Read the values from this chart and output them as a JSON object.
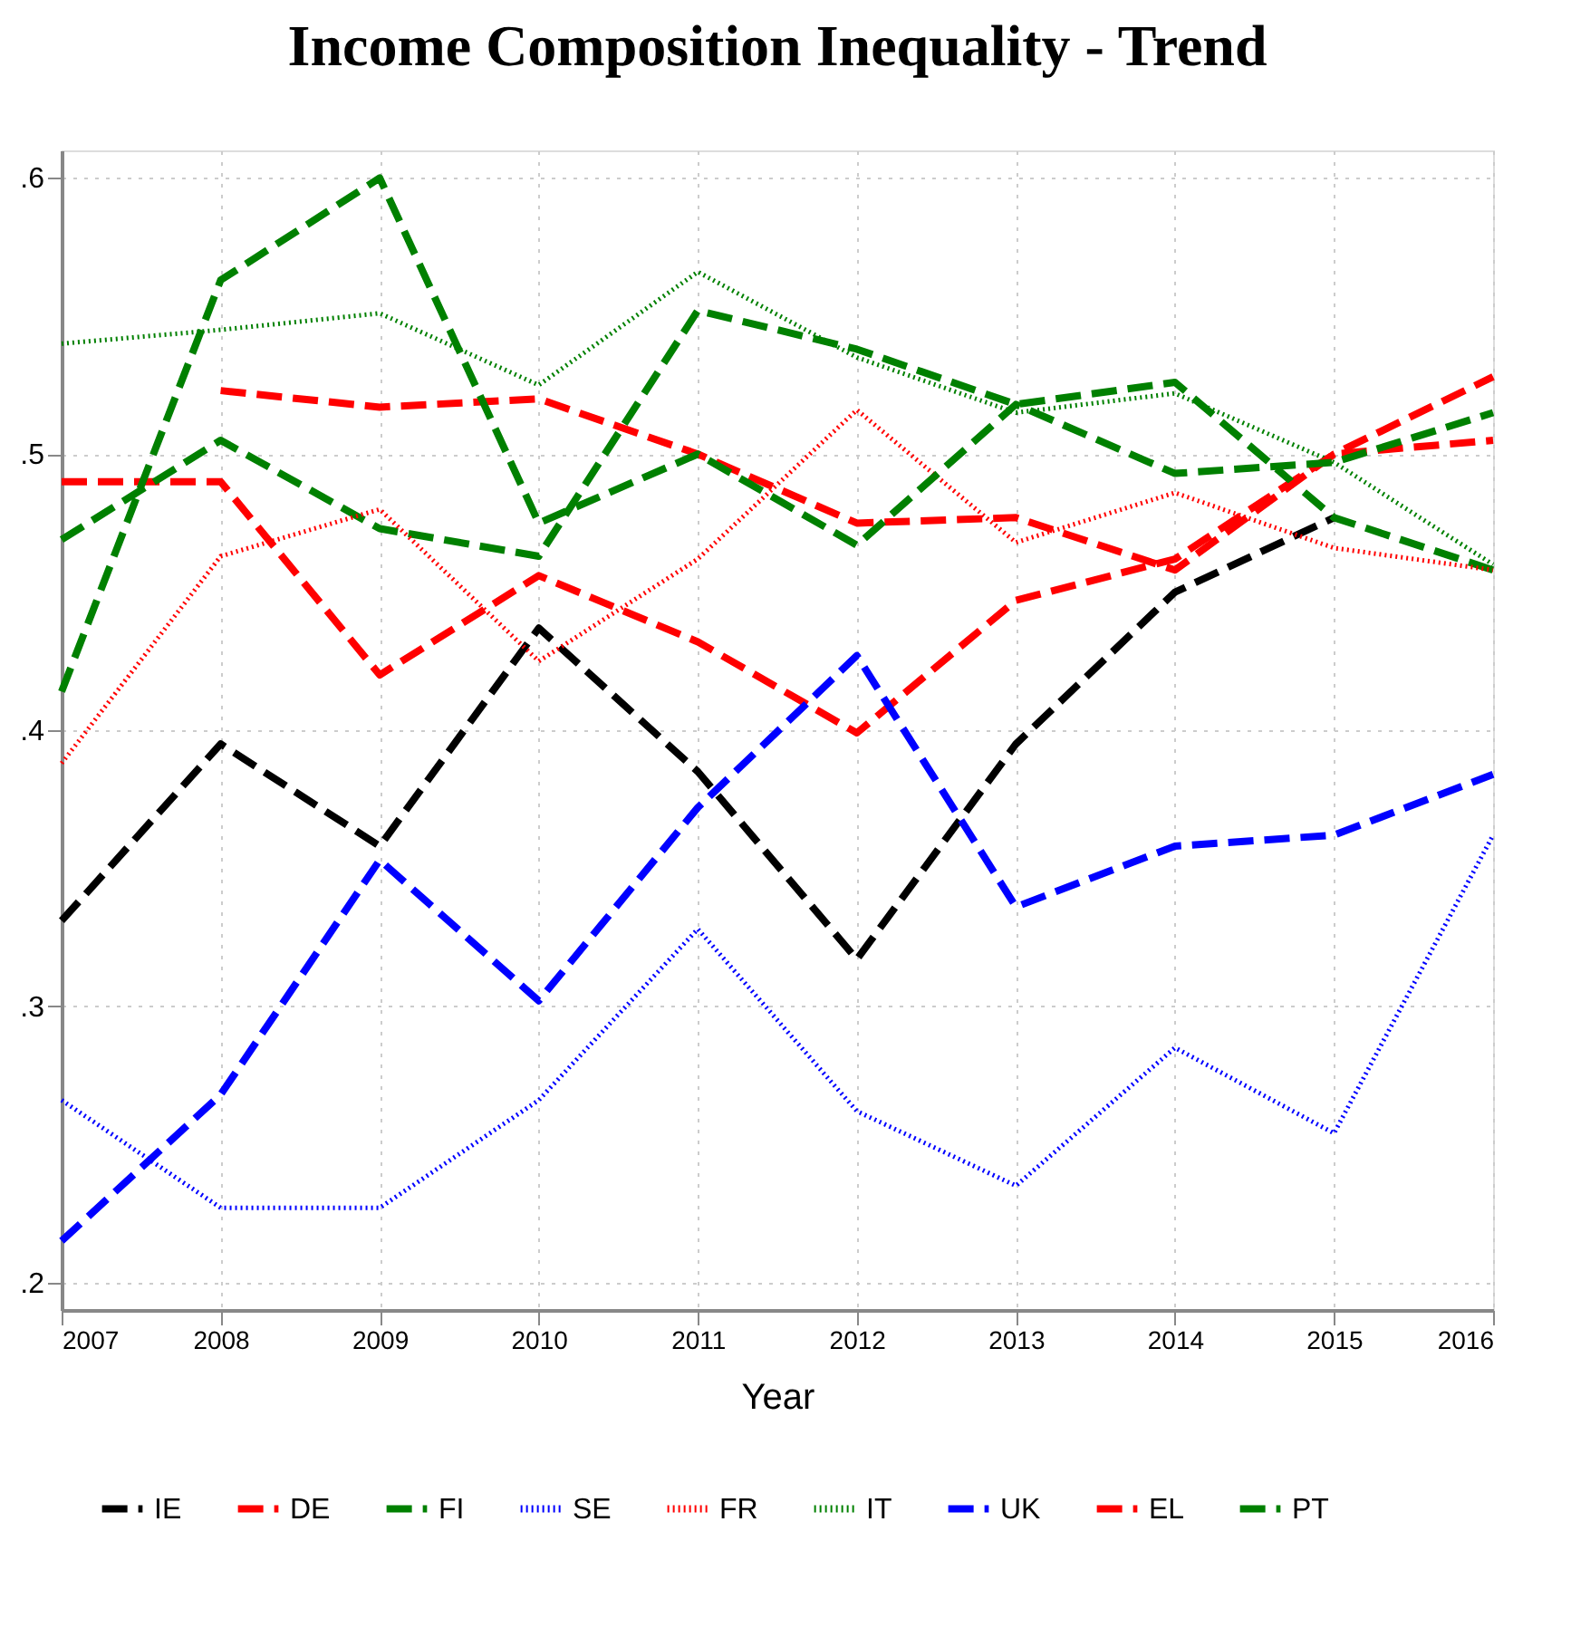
{
  "chart_data": {
    "type": "line",
    "title": "Income Composition Inequality - Trend",
    "xlabel": "Year",
    "x": [
      2007,
      2008,
      2009,
      2010,
      2011,
      2012,
      2013,
      2014,
      2015,
      2016
    ],
    "xlim": [
      2007,
      2016
    ],
    "xticks": [
      2007,
      2008,
      2009,
      2010,
      2011,
      2012,
      2013,
      2014,
      2015,
      2016
    ],
    "ylim": [
      0.19,
      0.61
    ],
    "yticks": [
      {
        "value": 0.2,
        "label": ".2"
      },
      {
        "value": 0.3,
        "label": ".3"
      },
      {
        "value": 0.4,
        "label": ".4"
      },
      {
        "value": 0.5,
        "label": ".5"
      },
      {
        "value": 0.6,
        "label": ".6"
      }
    ],
    "grid": true,
    "legend": "bottom",
    "marker": "none",
    "series": [
      {
        "name": "IE",
        "color": "#000000",
        "line_style": "dashed",
        "values": [
          0.331,
          0.395,
          0.358,
          0.437,
          0.385,
          0.317,
          0.395,
          0.45,
          0.477,
          null
        ]
      },
      {
        "name": "DE",
        "color": "#ff0000",
        "line_style": "dashed",
        "values": [
          0.49,
          0.49,
          0.42,
          0.456,
          0.432,
          0.399,
          0.447,
          0.462,
          0.5,
          0.505
        ]
      },
      {
        "name": "FI",
        "color": "#008000",
        "line_style": "dashed",
        "values": [
          0.469,
          0.505,
          0.473,
          0.463,
          0.552,
          0.538,
          0.518,
          0.526,
          0.477,
          0.458
        ]
      },
      {
        "name": "SE",
        "color": "#0000ff",
        "line_style": "dotted",
        "values": [
          0.266,
          0.227,
          0.227,
          0.266,
          0.328,
          0.262,
          0.235,
          0.285,
          0.254,
          0.362
        ]
      },
      {
        "name": "FR",
        "color": "#ff0000",
        "line_style": "dotted",
        "values": [
          0.388,
          0.463,
          0.48,
          0.425,
          0.462,
          0.516,
          0.468,
          0.486,
          0.466,
          0.458
        ]
      },
      {
        "name": "IT",
        "color": "#008000",
        "line_style": "dotted",
        "values": [
          0.54,
          0.545,
          0.551,
          0.525,
          0.566,
          0.535,
          0.515,
          0.522,
          0.497,
          0.46
        ]
      },
      {
        "name": "UK",
        "color": "#0000ff",
        "line_style": "dashed",
        "values": [
          0.215,
          0.268,
          0.353,
          0.302,
          0.372,
          0.427,
          0.336,
          0.358,
          0.362,
          0.384
        ]
      },
      {
        "name": "EL",
        "color": "#ff0000",
        "line_style": "dashed",
        "values": [
          null,
          0.523,
          0.517,
          0.52,
          0.5,
          0.475,
          0.477,
          0.458,
          0.5,
          0.528
        ]
      },
      {
        "name": "PT",
        "color": "#008000",
        "line_style": "dashed",
        "values": [
          0.414,
          0.563,
          0.6,
          0.475,
          0.5,
          0.467,
          0.518,
          0.493,
          0.497,
          0.515
        ]
      }
    ]
  }
}
